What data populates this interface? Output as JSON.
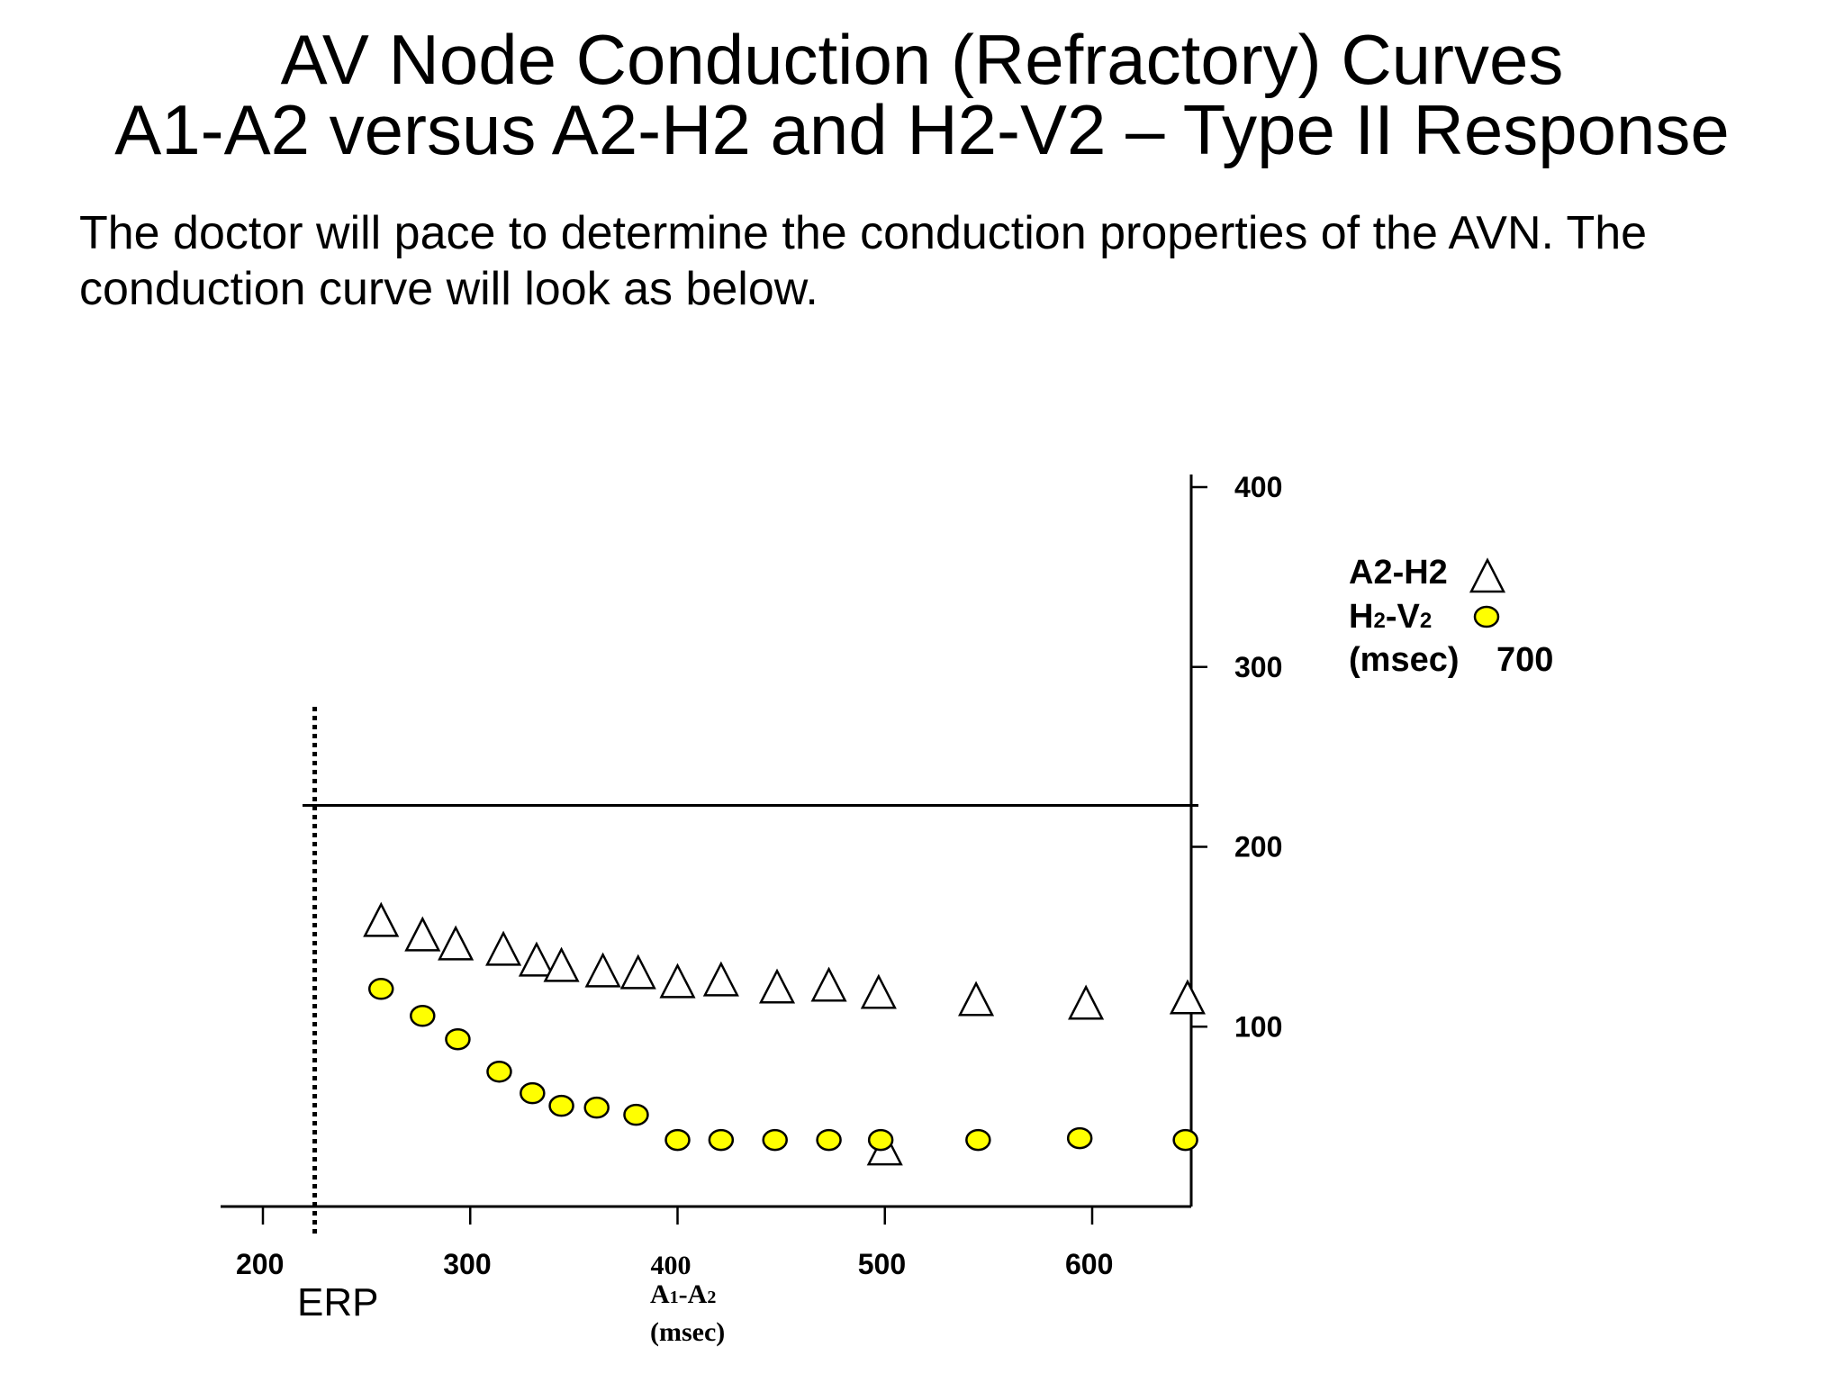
{
  "slide": {
    "title_line1": "AV Node Conduction (Refractory) Curves",
    "title_line2": "A1-A2 versus A2-H2 and H2-V2 – Type II Response",
    "description_line1": "The doctor will pace to determine the conduction properties of the AVN. The",
    "description_line2": "conduction curve will look as below."
  },
  "chart_data": {
    "type": "scatter",
    "title": "",
    "xlabel": {
      "main": "A",
      "sub1": "1",
      "dash": "-A",
      "sub2": "2",
      "units": "(msec)"
    },
    "ylabel": "",
    "xlim": [
      180,
      650
    ],
    "ylim": [
      0,
      410
    ],
    "x_ticks": [
      200,
      300,
      400,
      500,
      600
    ],
    "y_ticks": [
      100,
      200,
      300,
      400
    ],
    "x_tick_labels": [
      "200",
      "300",
      "400",
      "500",
      "600"
    ],
    "y_tick_labels": [
      "100",
      "200",
      "300",
      "400"
    ],
    "legend": {
      "position": "right",
      "a2h2_label": "A2-H2",
      "h2v2_main1": "H",
      "h2v2_sub1": "2",
      "h2v2_dash": "-V",
      "h2v2_sub2": "2",
      "units_label": "(msec)",
      "extra_value": "700"
    },
    "erp": {
      "label": "ERP",
      "x": 225
    },
    "horizontal_line_y": 223,
    "series": [
      {
        "name": "A2-H2",
        "marker": "triangle",
        "color": "#ffffff",
        "points": [
          [
            257,
            159
          ],
          [
            277,
            151
          ],
          [
            293,
            146
          ],
          [
            316,
            143
          ],
          [
            332,
            137
          ],
          [
            344,
            134
          ],
          [
            364,
            131
          ],
          [
            381,
            130
          ],
          [
            400,
            125
          ],
          [
            421,
            126
          ],
          [
            448,
            122
          ],
          [
            473,
            123
          ],
          [
            497,
            119
          ],
          [
            544,
            115
          ],
          [
            597,
            113
          ],
          [
            646,
            116
          ],
          [
            500,
            32
          ]
        ]
      },
      {
        "name": "H2-V2",
        "marker": "circle",
        "color": "#ffff00",
        "points": [
          [
            257,
            121
          ],
          [
            277,
            106
          ],
          [
            294,
            93
          ],
          [
            314,
            75
          ],
          [
            330,
            63
          ],
          [
            344,
            56
          ],
          [
            361,
            55
          ],
          [
            380,
            51
          ],
          [
            400,
            37
          ],
          [
            421,
            37
          ],
          [
            447,
            37
          ],
          [
            473,
            37
          ],
          [
            498,
            37
          ],
          [
            545,
            37
          ],
          [
            594,
            38
          ],
          [
            645,
            37
          ]
        ]
      }
    ]
  }
}
